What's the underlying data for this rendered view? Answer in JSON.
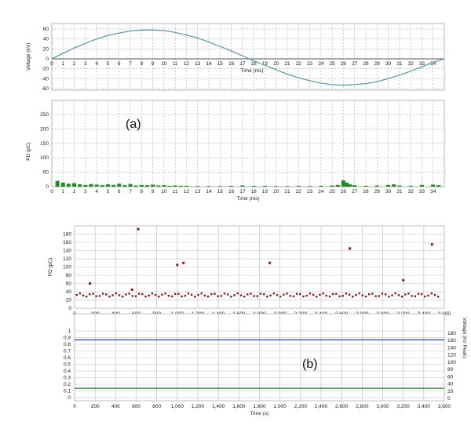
{
  "colors": {
    "voltage_line": "#5aa0a8",
    "pd_bars": "#1f8a1f",
    "pd_points": "#8b1a1a",
    "pd_axis_label": "#d23a3a",
    "voltage_axis_label": "#3a3ad8",
    "blue_line": "#2f4fe0",
    "green_line": "#1f7a1f",
    "grid_dash": "#9a9a9a",
    "grid_solid": "#bbbbbb"
  },
  "chart_data": [
    {
      "type": "line",
      "panel": "(a) top",
      "xlabel": "Time (ms)",
      "ylabel": "Voltage (kV)",
      "xlim": [
        0,
        35
      ],
      "ylim": [
        -60,
        65
      ],
      "xticks": [
        0,
        1,
        2,
        3,
        4,
        5,
        6,
        7,
        8,
        9,
        10,
        11,
        12,
        13,
        14,
        15,
        16,
        17,
        18,
        19,
        20,
        21,
        22,
        23,
        24,
        25,
        26,
        27,
        28,
        29,
        30,
        31,
        32,
        33,
        34
      ],
      "yticks": [
        60,
        40,
        20,
        0,
        -20,
        -40,
        -60
      ],
      "ytick_labels": [
        "60",
        "40",
        "20",
        "0",
        "-20",
        "-40",
        "-60"
      ],
      "grid": true,
      "series": [
        {
          "x": [
            0,
            1,
            2,
            3,
            4,
            5,
            6,
            7,
            8,
            9,
            10,
            11,
            12,
            13,
            14,
            15,
            16,
            17,
            18,
            19,
            20,
            21,
            22,
            23,
            24,
            25,
            26,
            27,
            28,
            29,
            30,
            31,
            32,
            33,
            34,
            35
          ],
          "values": [
            0,
            11,
            22,
            31,
            40,
            47,
            52,
            56,
            58,
            58,
            57,
            53,
            48,
            42,
            34,
            25,
            16,
            6,
            -4,
            -13,
            -22,
            -31,
            -38,
            -44,
            -49,
            -52,
            -53,
            -52,
            -50,
            -46,
            -40,
            -33,
            -25,
            -16,
            -7,
            0
          ]
        }
      ]
    },
    {
      "type": "bar",
      "panel": "(a) bottom",
      "label": "(a)",
      "xlabel": "Time (ms)",
      "ylabel": "PD (pC)",
      "xlim": [
        0,
        35
      ],
      "ylim": [
        0,
        270
      ],
      "xticks": [
        0,
        1,
        2,
        3,
        4,
        5,
        6,
        7,
        8,
        9,
        10,
        11,
        12,
        13,
        14,
        15,
        16,
        17,
        18,
        19,
        20,
        21,
        22,
        23,
        24,
        25,
        26,
        27,
        28,
        29,
        30,
        31,
        32,
        33,
        34
      ],
      "yticks": [
        250,
        200,
        150,
        100,
        50,
        0
      ],
      "ytick_labels": [
        "250",
        "200",
        "150",
        "100",
        "50",
        "0"
      ],
      "grid": true,
      "series": [
        {
          "x": [
            0.5,
            1,
            1.5,
            2,
            2.5,
            3,
            3.5,
            4,
            4.5,
            5,
            5.5,
            6,
            6.5,
            7,
            7.5,
            8,
            8.5,
            9,
            9.5,
            10,
            10.5,
            11,
            11.5,
            12,
            13,
            14,
            15,
            16,
            17,
            18,
            19,
            20,
            21,
            22,
            23,
            24,
            25,
            25.5,
            26,
            26.3,
            26.6,
            27,
            28,
            29,
            30,
            30.5,
            31,
            32,
            33,
            34,
            34.5
          ],
          "values": [
            20,
            14,
            10,
            12,
            8,
            6,
            9,
            7,
            5,
            8,
            6,
            10,
            5,
            9,
            4,
            6,
            5,
            7,
            4,
            5,
            3,
            4,
            3,
            3,
            2,
            2,
            2,
            3,
            4,
            3,
            3,
            2,
            2,
            3,
            2,
            3,
            4,
            6,
            22,
            14,
            8,
            5,
            3,
            4,
            6,
            8,
            4,
            3,
            6,
            7,
            5
          ]
        }
      ]
    },
    {
      "type": "scatter",
      "panel": "(b) top",
      "ylabel": "PD (pC)",
      "xlim": [
        0,
        3600
      ],
      "ylim": [
        0,
        200
      ],
      "xticks": [
        0,
        200,
        400,
        600,
        800,
        1000,
        1200,
        1400,
        1600,
        1800,
        2000,
        2200,
        2400,
        2600,
        2800,
        3000,
        3200,
        3400,
        3600
      ],
      "xtick_labels": [
        "0",
        "200",
        "400",
        "600",
        "800",
        "1,000",
        "1,200",
        "1,400",
        "1,600",
        "1,800",
        "2,000",
        "2,200",
        "2,400",
        "2,600",
        "2,800",
        "3,000",
        "3,200",
        "3,400",
        "3,600"
      ],
      "yticks": [
        0,
        20,
        40,
        60,
        80,
        100,
        120,
        140,
        160,
        180
      ],
      "grid": true,
      "baseline": {
        "x_start": 20,
        "x_end": 3560,
        "step": 32,
        "value": 32,
        "jitter": 4
      },
      "series": [
        {
          "x": [
            150,
            560,
            620,
            1000,
            1060,
            1900,
            2680,
            3200,
            3480
          ],
          "values": [
            60,
            45,
            192,
            105,
            110,
            110,
            145,
            68,
            155
          ]
        }
      ]
    },
    {
      "type": "line",
      "panel": "(b) bottom",
      "label": "(b)",
      "xlabel": "Time (s)",
      "ylabel_right": "Voltage (kV Peak)",
      "xlim": [
        0,
        3600
      ],
      "ylim_left": [
        0,
        1
      ],
      "ylim_right": [
        0,
        190
      ],
      "xticks": [
        0,
        200,
        400,
        600,
        800,
        1000,
        1200,
        1400,
        1600,
        1800,
        2000,
        2200,
        2400,
        2600,
        2800,
        3000,
        3200,
        3400,
        3600
      ],
      "xtick_labels": [
        "0",
        "200",
        "400",
        "600",
        "800",
        "1,000",
        "1,200",
        "1,400",
        "1,600",
        "1,800",
        "2,000",
        "2,200",
        "2,400",
        "2,600",
        "2,800",
        "3,000",
        "3,200",
        "3,400",
        "3,600"
      ],
      "yticks_left": [
        0,
        0.1,
        0.2,
        0.3,
        0.4,
        0.5,
        0.6,
        0.7,
        0.8,
        0.9,
        1
      ],
      "ytick_labels_left": [
        "0",
        "0.1",
        "0.2",
        "0.3",
        "0.4",
        "0.5",
        "0.6",
        "0.7",
        "0.8",
        "0.9",
        "1"
      ],
      "yticks_right": [
        0,
        20,
        40,
        60,
        80,
        100,
        120,
        140,
        160,
        180
      ],
      "grid": true,
      "series": [
        {
          "x": [
            0,
            3600
          ],
          "values": [
            162,
            162
          ],
          "axis": "right"
        },
        {
          "x": [
            0,
            3600
          ],
          "values": [
            0.14,
            0.14
          ],
          "axis": "left"
        }
      ]
    }
  ]
}
